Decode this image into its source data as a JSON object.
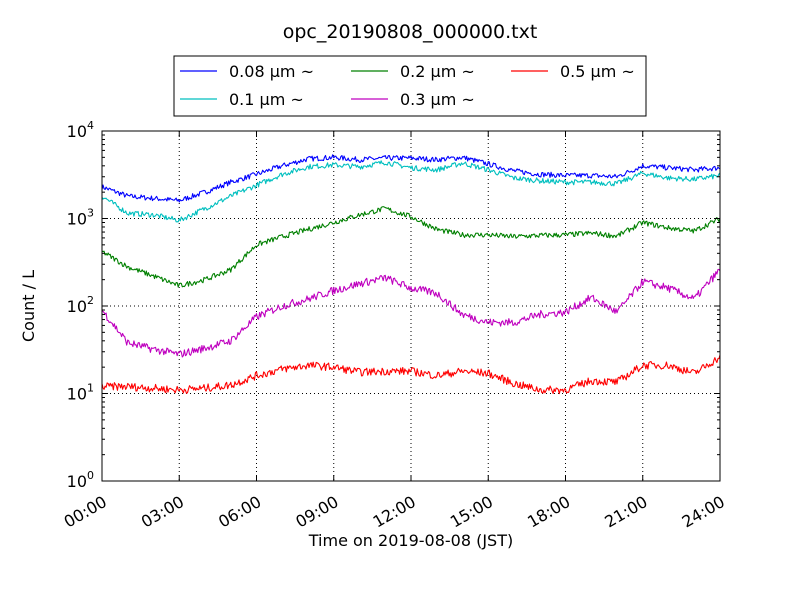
{
  "chart_data": {
    "type": "line",
    "title": "opc_20190808_000000.txt",
    "xlabel": "Time on 2019-08-08 (JST)",
    "ylabel": "Count / L",
    "yscale": "log",
    "ylim": [
      1,
      10000
    ],
    "xlim": [
      "00:00",
      "24:00"
    ],
    "grid": true,
    "legend_position": "top-center",
    "xticks": [
      "00:00",
      "03:00",
      "06:00",
      "09:00",
      "12:00",
      "15:00",
      "18:00",
      "21:00",
      "24:00"
    ],
    "yticks": [
      {
        "base": "10",
        "exp": "0"
      },
      {
        "base": "10",
        "exp": "1"
      },
      {
        "base": "10",
        "exp": "2"
      },
      {
        "base": "10",
        "exp": "3"
      },
      {
        "base": "10",
        "exp": "4"
      }
    ],
    "x_hours": [
      0,
      1,
      2,
      3,
      4,
      5,
      6,
      7,
      8,
      9,
      10,
      11,
      12,
      13,
      14,
      15,
      16,
      17,
      18,
      19,
      20,
      21,
      22,
      23,
      24
    ],
    "series": [
      {
        "name": "0.08 μm ~",
        "color": "#0000ff",
        "values": [
          2300,
          1800,
          1700,
          1600,
          2000,
          2600,
          3200,
          4000,
          4800,
          5000,
          4700,
          4900,
          4900,
          4700,
          5000,
          4200,
          3500,
          3200,
          3100,
          3100,
          3000,
          4000,
          3800,
          3600,
          3800
        ]
      },
      {
        "name": "0.1 μm ~",
        "color": "#00bfbf",
        "values": [
          1800,
          1150,
          1100,
          950,
          1300,
          1800,
          2400,
          3200,
          3900,
          4100,
          3900,
          4400,
          3800,
          3600,
          4300,
          3600,
          2900,
          2700,
          2600,
          2600,
          2500,
          3300,
          2900,
          2800,
          3100
        ]
      },
      {
        "name": "0.2 μm ~",
        "color": "#008000",
        "values": [
          420,
          280,
          220,
          170,
          200,
          260,
          500,
          620,
          750,
          900,
          1100,
          1300,
          1050,
          750,
          650,
          650,
          620,
          640,
          650,
          680,
          630,
          900,
          780,
          720,
          1000
        ]
      },
      {
        "name": "0.3 μm ~",
        "color": "#bf00bf",
        "values": [
          90,
          38,
          32,
          28,
          33,
          40,
          75,
          100,
          120,
          150,
          180,
          210,
          160,
          140,
          80,
          65,
          65,
          80,
          85,
          125,
          85,
          190,
          160,
          120,
          260
        ]
      },
      {
        "name": "0.5 μm ~",
        "color": "#ff0000",
        "values": [
          12,
          12,
          11.5,
          11,
          11.5,
          12.5,
          16,
          19,
          21,
          20,
          17.5,
          18,
          18,
          16,
          18,
          17,
          13,
          11,
          11,
          14,
          13.5,
          21,
          21,
          17,
          26
        ]
      }
    ]
  }
}
